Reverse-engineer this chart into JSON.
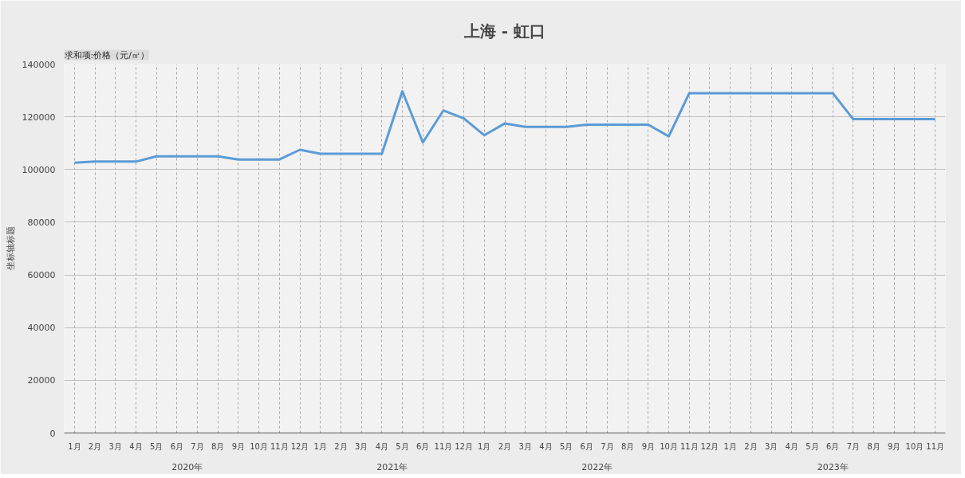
{
  "chart_data": {
    "type": "line",
    "title": "上海 - 虹口",
    "ylabel": "坐标轴标题",
    "annotations": [
      "求和项:价格（元/㎡）",
      "2020年",
      "2021年",
      "2022年",
      "2023年"
    ],
    "categories": [
      "1月",
      "2月",
      "3月",
      "4月",
      "5月",
      "6月",
      "7月",
      "8月",
      "9月",
      "10月",
      "11月",
      "12月",
      "1月",
      "2月",
      "3月",
      "4月",
      "5月",
      "6月",
      "11月",
      "12月",
      "1月",
      "2月",
      "3月",
      "4月",
      "5月",
      "6月",
      "7月",
      "8月",
      "9月",
      "10月",
      "11月",
      "12月",
      "1月",
      "2月",
      "3月",
      "4月",
      "5月",
      "6月",
      "7月",
      "8月",
      "9月",
      "10月",
      "11月"
    ],
    "series": [
      {
        "color": "#5b9bd5",
        "values": [
          102600,
          103000,
          103000,
          103000,
          105000,
          105000,
          105000,
          105000,
          103800,
          103800,
          103800,
          107500,
          106000,
          106000,
          106000,
          106000,
          129700,
          110300,
          122400,
          119400,
          113000,
          117500,
          116200,
          116200,
          116200,
          117000,
          117000,
          117000,
          117000,
          112600,
          129000,
          129000,
          129000,
          129000,
          129000,
          129000,
          129000,
          129000,
          119100,
          119100,
          119100,
          119100,
          119100
        ]
      }
    ],
    "ylim": [
      0,
      140000
    ],
    "yticks": [
      0,
      20000,
      40000,
      60000,
      80000,
      100000,
      120000,
      140000
    ],
    "grid": true,
    "marker": "none",
    "line_style": "solid"
  }
}
